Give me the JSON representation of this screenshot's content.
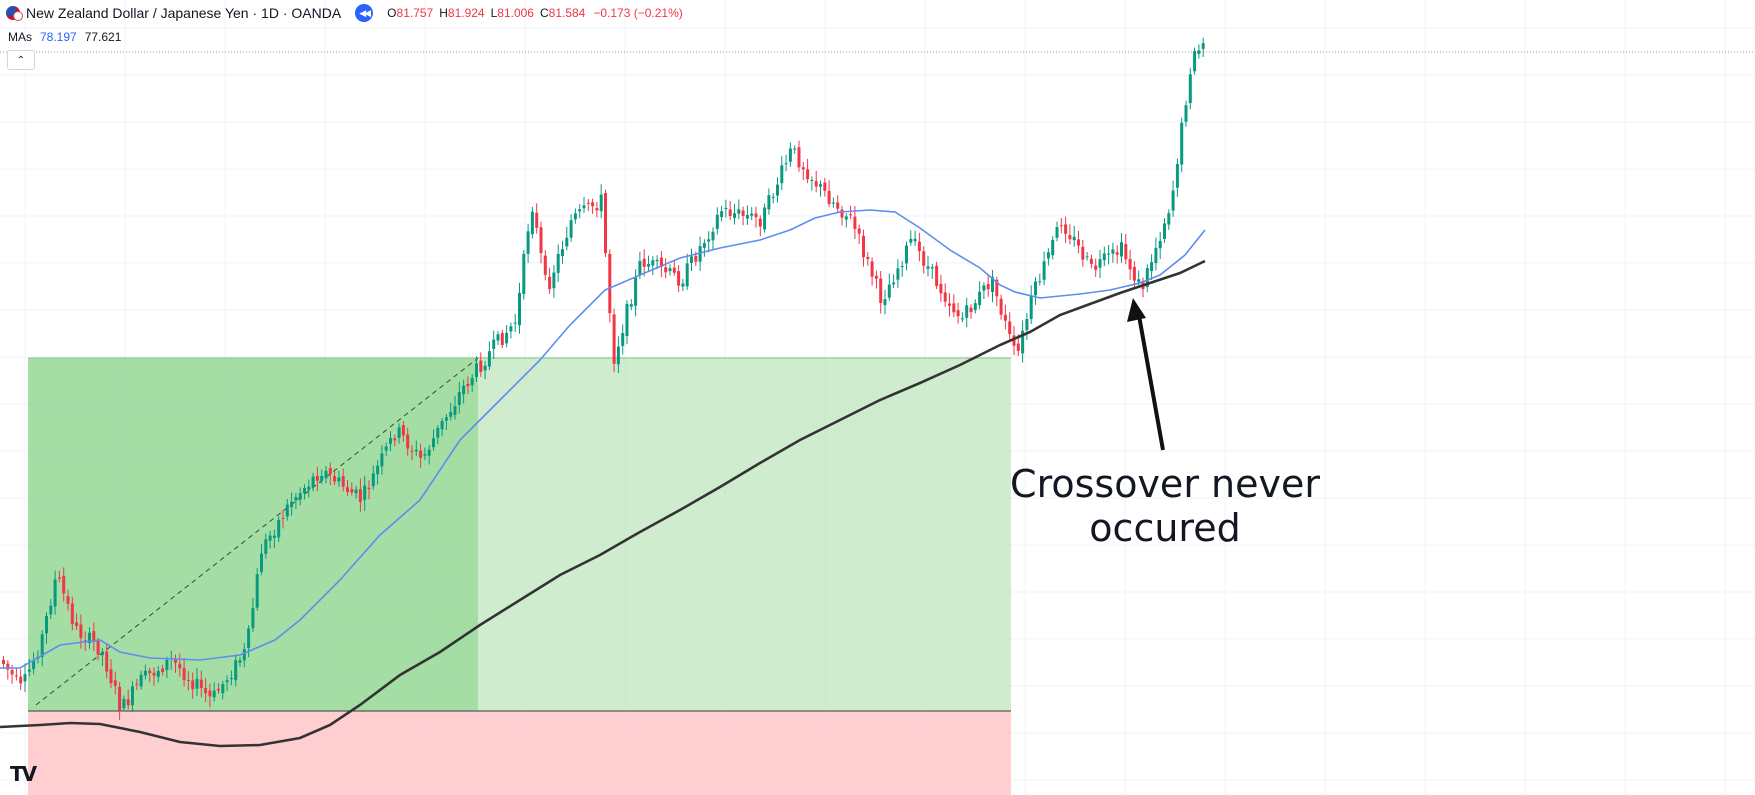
{
  "header": {
    "symbol_title": "New Zealand Dollar / Japanese Yen · 1D · OANDA",
    "ohlc": [
      {
        "label": "O",
        "value": "81.757"
      },
      {
        "label": "H",
        "value": "81.924"
      },
      {
        "label": "L",
        "value": "81.006"
      },
      {
        "label": "C",
        "value": "81.584"
      }
    ],
    "change": "−0.173 (−0.21%)",
    "rewind_icon": "double-chevron-left-icon",
    "flag_icon": "nzd-jpy-flag-icon"
  },
  "indicators": {
    "label": "MAs",
    "ma_fast_value": "78.197",
    "ma_slow_value": "77.621",
    "collapse_icon": "chevron-up-icon"
  },
  "annotation": {
    "text_line1": "Crossover never",
    "text_line2": "occured"
  },
  "logo": {
    "text": "TV"
  },
  "colors": {
    "up_candle": "#089981",
    "down_candle": "#f23645",
    "ma_fast": "#5b8ef0",
    "ma_slow": "#333333",
    "profit_zone": "#4caf50",
    "loss_zone": "#f23645"
  }
}
